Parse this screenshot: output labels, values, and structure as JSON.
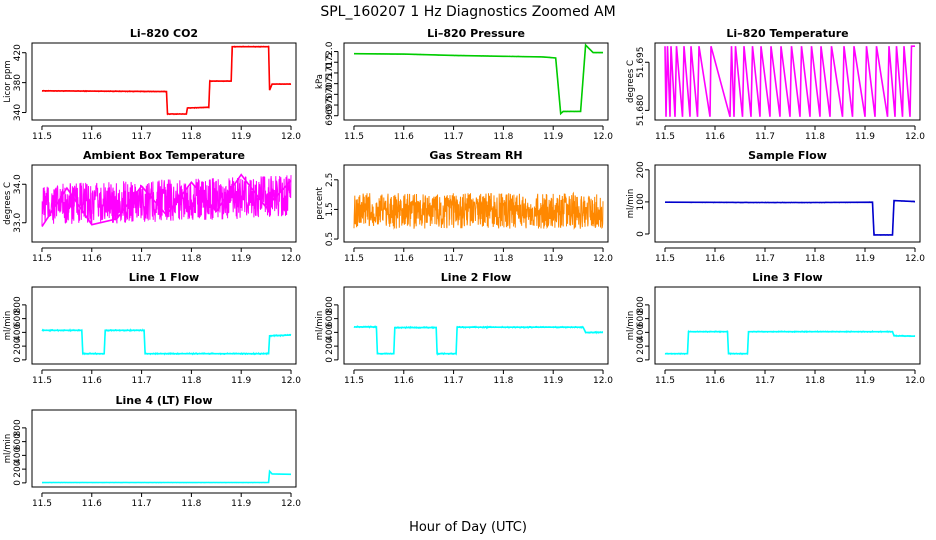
{
  "figure": {
    "title": "SPL_160207  1 Hz Diagnostics Zoomed AM",
    "xlabel": "Hour of Day (UTC)"
  },
  "chart_data": [
    {
      "id": "co2",
      "type": "line",
      "title": "Li–820 CO2",
      "ylabel": "Licor ppm",
      "color": "#ff0000",
      "xlim": [
        11.48,
        12.01
      ],
      "ylim": [
        330,
        433
      ],
      "x_ticks": [
        "11.5",
        "11.6",
        "11.7",
        "11.8",
        "11.9",
        "12.0"
      ],
      "y_ticks": [
        "340",
        "380",
        "420"
      ],
      "series": [
        {
          "name": "CO2",
          "values": [
            [
              11.5,
              369
            ],
            [
              11.75,
              368
            ],
            [
              11.752,
              338
            ],
            [
              11.79,
              338
            ],
            [
              11.792,
              346
            ],
            [
              11.835,
              347
            ],
            [
              11.837,
              382
            ],
            [
              11.88,
              382
            ],
            [
              11.882,
              428
            ],
            [
              11.955,
              428
            ],
            [
              11.957,
              370
            ],
            [
              11.962,
              378
            ],
            [
              12.0,
              378
            ]
          ]
        }
      ]
    },
    {
      "id": "pressure",
      "type": "line",
      "title": "Li–820 Pressure",
      "ylabel": "kPa",
      "color": "#00cc00",
      "xlim": [
        11.48,
        12.01
      ],
      "ylim": [
        68.8,
        72.4
      ],
      "x_ticks": [
        "11.5",
        "11.6",
        "11.7",
        "11.8",
        "11.9",
        "12.0"
      ],
      "y_ticks": [
        "69.0",
        "69.5",
        "70.0",
        "70.5",
        "71.0",
        "71.5",
        "72.0"
      ],
      "series": [
        {
          "name": "Pressure",
          "values": [
            [
              11.5,
              71.9
            ],
            [
              11.6,
              71.88
            ],
            [
              11.7,
              71.82
            ],
            [
              11.8,
              71.78
            ],
            [
              11.88,
              71.75
            ],
            [
              11.905,
              71.7
            ],
            [
              11.915,
              69.1
            ],
            [
              11.92,
              69.2
            ],
            [
              11.955,
              69.2
            ],
            [
              11.965,
              72.3
            ],
            [
              11.98,
              71.95
            ],
            [
              12.0,
              71.95
            ]
          ]
        }
      ]
    },
    {
      "id": "licor_temp",
      "type": "line",
      "title": "Li–820 Temperature",
      "ylabel": "degrees C",
      "color": "#ff00ff",
      "xlim": [
        11.48,
        12.01
      ],
      "ylim": [
        51.677,
        51.701
      ],
      "x_ticks": [
        "11.5",
        "11.6",
        "11.7",
        "11.8",
        "11.9",
        "12.0"
      ],
      "y_ticks": [
        "51.680",
        "51.695"
      ],
      "series": [
        {
          "name": "Temperature",
          "values": [
            [
              11.5,
              51.7
            ],
            [
              11.502,
              51.678
            ],
            [
              11.505,
              51.7
            ],
            [
              11.51,
              51.678
            ],
            [
              11.512,
              51.7
            ],
            [
              11.52,
              51.678
            ],
            [
              11.523,
              51.7
            ],
            [
              11.535,
              51.678
            ],
            [
              11.538,
              51.7
            ],
            [
              11.55,
              51.678
            ],
            [
              11.552,
              51.7
            ],
            [
              11.565,
              51.678
            ],
            [
              11.568,
              51.7
            ],
            [
              11.59,
              51.678
            ],
            [
              11.592,
              51.7
            ],
            [
              11.63,
              51.678
            ],
            [
              11.633,
              51.7
            ],
            [
              11.638,
              51.678
            ],
            [
              11.641,
              51.7
            ],
            [
              11.655,
              51.678
            ],
            [
              11.658,
              51.7
            ],
            [
              11.672,
              51.678
            ],
            [
              11.675,
              51.7
            ],
            [
              11.69,
              51.678
            ],
            [
              11.692,
              51.7
            ],
            [
              11.71,
              51.678
            ],
            [
              11.712,
              51.7
            ],
            [
              11.73,
              51.678
            ],
            [
              11.732,
              51.7
            ],
            [
              11.75,
              51.678
            ],
            [
              11.753,
              51.7
            ],
            [
              11.77,
              51.678
            ],
            [
              11.773,
              51.7
            ],
            [
              11.79,
              51.678
            ],
            [
              11.793,
              51.7
            ],
            [
              11.81,
              51.678
            ],
            [
              11.812,
              51.7
            ],
            [
              11.83,
              51.678
            ],
            [
              11.833,
              51.7
            ],
            [
              11.855,
              51.678
            ],
            [
              11.858,
              51.7
            ],
            [
              11.875,
              51.678
            ],
            [
              11.878,
              51.7
            ],
            [
              11.9,
              51.678
            ],
            [
              11.903,
              51.7
            ],
            [
              11.92,
              51.678
            ],
            [
              11.923,
              51.7
            ],
            [
              11.945,
              51.678
            ],
            [
              11.948,
              51.7
            ],
            [
              11.96,
              51.678
            ],
            [
              11.963,
              51.7
            ],
            [
              11.975,
              51.678
            ],
            [
              11.978,
              51.7
            ],
            [
              11.99,
              51.678
            ],
            [
              11.993,
              51.7
            ],
            [
              12.0,
              51.7
            ]
          ]
        }
      ]
    },
    {
      "id": "ambient_temp",
      "type": "line",
      "title": "Ambient Box Temperature",
      "ylabel": "degrees C",
      "color": "#ff00ff",
      "xlim": [
        11.48,
        12.01
      ],
      "ylim": [
        32.5,
        34.5
      ],
      "x_ticks": [
        "11.5",
        "11.6",
        "11.7",
        "11.8",
        "11.9",
        "12.0"
      ],
      "y_ticks": [
        "33.0",
        "34.0"
      ],
      "series": [
        {
          "name": "Box Temp",
          "values": [
            [
              11.5,
              32.9
            ],
            [
              11.55,
              33.9
            ],
            [
              11.6,
              32.95
            ],
            [
              11.65,
              33.1
            ],
            [
              11.7,
              33.95
            ],
            [
              11.75,
              33.2
            ],
            [
              11.8,
              34.05
            ],
            [
              11.85,
              33.3
            ],
            [
              11.9,
              34.25
            ],
            [
              11.95,
              33.4
            ],
            [
              12.0,
              34.1
            ]
          ]
        }
      ]
    },
    {
      "id": "gas_rh",
      "type": "line",
      "title": "Gas Stream RH",
      "ylabel": "percent",
      "color": "#ff8800",
      "xlim": [
        11.48,
        12.01
      ],
      "ylim": [
        0.4,
        3.0
      ],
      "x_ticks": [
        "11.5",
        "11.6",
        "11.7",
        "11.8",
        "11.9",
        "12.0"
      ],
      "y_ticks": [
        "0.5",
        "1.5",
        "2.5"
      ],
      "series": [
        {
          "name": "RH",
          "values": [
            [
              11.5,
              1.0
            ],
            [
              11.55,
              1.9
            ],
            [
              11.6,
              1.1
            ],
            [
              11.65,
              1.8
            ],
            [
              11.7,
              1.05
            ],
            [
              11.75,
              1.85
            ],
            [
              11.8,
              1.1
            ],
            [
              11.85,
              1.75
            ],
            [
              11.9,
              1.0
            ],
            [
              11.95,
              1.8
            ],
            [
              12.0,
              1.2
            ]
          ]
        }
      ]
    },
    {
      "id": "sample_flow",
      "type": "line",
      "title": "Sample Flow",
      "ylabel": "ml/min",
      "color": "#0000cc",
      "xlim": [
        11.48,
        12.01
      ],
      "ylim": [
        -25,
        215
      ],
      "x_ticks": [
        "11.5",
        "11.6",
        "11.7",
        "11.8",
        "11.9",
        "12.0"
      ],
      "y_ticks": [
        "0",
        "100",
        "200"
      ],
      "series": [
        {
          "name": "Sample Flow",
          "values": [
            [
              11.5,
              99
            ],
            [
              11.7,
              98
            ],
            [
              11.8,
              98
            ],
            [
              11.915,
              99
            ],
            [
              11.918,
              -3
            ],
            [
              11.955,
              -3
            ],
            [
              11.958,
              104
            ],
            [
              12.0,
              101
            ]
          ]
        }
      ]
    },
    {
      "id": "line1",
      "type": "line",
      "title": "Line 1 Flow",
      "ylabel": "ml/min",
      "color": "#00ffff",
      "xlim": [
        11.48,
        12.01
      ],
      "ylim": [
        -60,
        1060
      ],
      "x_ticks": [
        "11.5",
        "11.6",
        "11.7",
        "11.8",
        "11.9",
        "12.0"
      ],
      "y_ticks": [
        "0",
        "200",
        "400",
        "600",
        "800"
      ],
      "series": [
        {
          "name": "Line 1",
          "values": [
            [
              11.5,
              430
            ],
            [
              11.58,
              430
            ],
            [
              11.582,
              90
            ],
            [
              11.625,
              90
            ],
            [
              11.627,
              430
            ],
            [
              11.705,
              430
            ],
            [
              11.707,
              90
            ],
            [
              11.955,
              90
            ],
            [
              11.957,
              350
            ],
            [
              12.0,
              360
            ]
          ]
        }
      ]
    },
    {
      "id": "line2",
      "type": "line",
      "title": "Line 2 Flow",
      "ylabel": "ml/min",
      "color": "#00ffff",
      "xlim": [
        11.48,
        12.01
      ],
      "ylim": [
        -60,
        1060
      ],
      "x_ticks": [
        "11.5",
        "11.6",
        "11.7",
        "11.8",
        "11.9",
        "12.0"
      ],
      "y_ticks": [
        "0",
        "200",
        "400",
        "600",
        "800"
      ],
      "series": [
        {
          "name": "Line 2",
          "values": [
            [
              11.5,
              480
            ],
            [
              11.545,
              480
            ],
            [
              11.547,
              90
            ],
            [
              11.58,
              90
            ],
            [
              11.582,
              470
            ],
            [
              11.665,
              470
            ],
            [
              11.667,
              90
            ],
            [
              11.705,
              90
            ],
            [
              11.707,
              475
            ],
            [
              11.96,
              475
            ],
            [
              11.965,
              400
            ],
            [
              12.0,
              400
            ]
          ]
        }
      ]
    },
    {
      "id": "line3",
      "type": "line",
      "title": "Line 3 Flow",
      "ylabel": "ml/min",
      "color": "#00ffff",
      "xlim": [
        11.48,
        12.01
      ],
      "ylim": [
        -60,
        1060
      ],
      "x_ticks": [
        "11.5",
        "11.6",
        "11.7",
        "11.8",
        "11.9",
        "12.0"
      ],
      "y_ticks": [
        "0",
        "200",
        "400",
        "600",
        "800"
      ],
      "series": [
        {
          "name": "Line 3",
          "values": [
            [
              11.5,
              90
            ],
            [
              11.545,
              90
            ],
            [
              11.547,
              410
            ],
            [
              11.625,
              410
            ],
            [
              11.627,
              90
            ],
            [
              11.665,
              90
            ],
            [
              11.667,
              410
            ],
            [
              11.955,
              410
            ],
            [
              11.958,
              350
            ],
            [
              12.0,
              345
            ]
          ]
        }
      ]
    },
    {
      "id": "line4",
      "type": "line",
      "title": "Line 4 (LT) Flow",
      "ylabel": "ml/min",
      "color": "#00ffff",
      "xlim": [
        11.48,
        12.01
      ],
      "ylim": [
        -60,
        1060
      ],
      "x_ticks": [
        "11.5",
        "11.6",
        "11.7",
        "11.8",
        "11.9",
        "12.0"
      ],
      "y_ticks": [
        "0",
        "200",
        "400",
        "600",
        "800"
      ],
      "series": [
        {
          "name": "Line 4",
          "values": [
            [
              11.5,
              5
            ],
            [
              11.7,
              5
            ],
            [
              11.955,
              5
            ],
            [
              11.957,
              170
            ],
            [
              11.962,
              130
            ],
            [
              12.0,
              125
            ]
          ]
        }
      ]
    }
  ]
}
